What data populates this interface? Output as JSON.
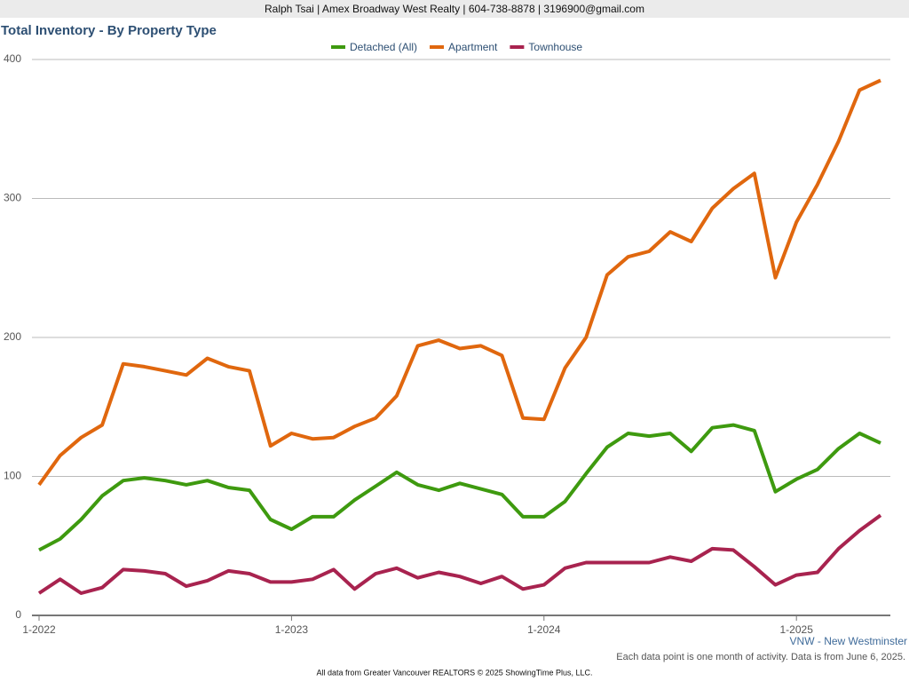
{
  "header": "Ralph Tsai | Amex Broadway West Realty | 604-738-8878 | 3196900@gmail.com",
  "chart_data": {
    "type": "line",
    "title": "Total Inventory - By Property Type",
    "categories": [
      "1-2022",
      null,
      null,
      null,
      null,
      null,
      null,
      null,
      null,
      null,
      null,
      null,
      "1-2023",
      null,
      null,
      null,
      null,
      null,
      null,
      null,
      null,
      null,
      null,
      null,
      "1-2024",
      null,
      null,
      null,
      null,
      null,
      null,
      null,
      null,
      null,
      null,
      null,
      "1-2025",
      null,
      null,
      null,
      null
    ],
    "series": [
      {
        "name": "Detached (All)",
        "color": "#3e9a0f",
        "values": [
          47,
          55,
          69,
          86,
          97,
          99,
          97,
          94,
          97,
          92,
          90,
          69,
          62,
          71,
          71,
          83,
          93,
          103,
          94,
          90,
          95,
          91,
          87,
          71,
          71,
          82,
          102,
          121,
          131,
          129,
          131,
          118,
          135,
          137,
          133,
          89,
          98,
          105,
          120,
          131,
          124
        ]
      },
      {
        "name": "Apartment",
        "color": "#e0670e",
        "values": [
          94,
          115,
          128,
          137,
          181,
          179,
          176,
          173,
          185,
          179,
          176,
          122,
          131,
          127,
          128,
          136,
          142,
          158,
          194,
          198,
          192,
          194,
          187,
          142,
          141,
          178,
          200,
          245,
          258,
          262,
          276,
          269,
          293,
          307,
          318,
          243,
          283,
          310,
          341,
          378,
          385
        ]
      },
      {
        "name": "Townhouse",
        "color": "#a8234f",
        "values": [
          16,
          26,
          16,
          20,
          33,
          32,
          30,
          21,
          25,
          32,
          30,
          24,
          24,
          26,
          33,
          19,
          30,
          34,
          27,
          31,
          28,
          23,
          28,
          19,
          22,
          34,
          38,
          38,
          38,
          38,
          42,
          39,
          48,
          47,
          35,
          22,
          29,
          31,
          48,
          61,
          72
        ]
      }
    ],
    "ylim": [
      0,
      400
    ],
    "yticks": [
      0,
      100,
      200,
      300,
      400
    ],
    "grid": true,
    "region": "VNW - New Westminster",
    "note": "Each data point is one month of activity. Data is from June 6, 2025.",
    "source": "All data from Greater Vancouver REALTORS © 2025 ShowingTime Plus, LLC."
  }
}
